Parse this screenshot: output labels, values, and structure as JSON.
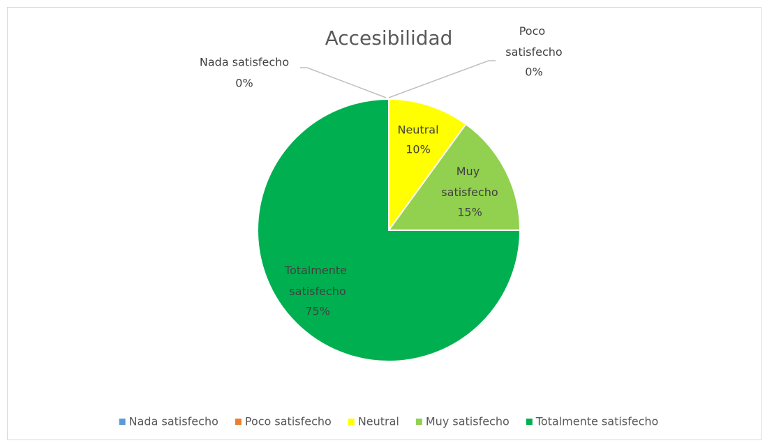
{
  "chart_data": {
    "type": "pie",
    "title": "Accesibilidad",
    "categories": [
      "Nada satisfecho",
      "Poco satisfecho",
      "Neutral",
      "Muy satisfecho",
      "Totalmente satisfecho"
    ],
    "values": [
      0,
      0,
      10,
      15,
      75
    ],
    "value_labels": [
      "0%",
      "0%",
      "10%",
      "15%",
      "75%"
    ],
    "colors": [
      "#5b9bd5",
      "#ed7d31",
      "#ffff00",
      "#92d050",
      "#00b050"
    ],
    "legend": "bottom"
  }
}
